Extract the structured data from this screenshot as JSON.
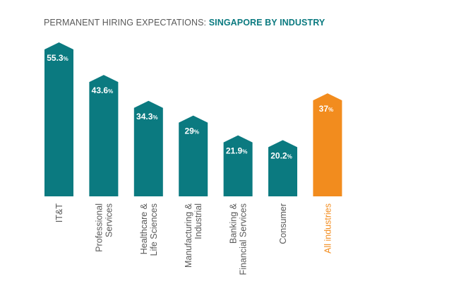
{
  "header": {
    "title_prefix": "PERMANENT HIRING EXPECTATIONS: ",
    "title_highlight": "SINGAPORE BY INDUSTRY"
  },
  "colors": {
    "bar": "#0b7a80",
    "bar_total": "#f28c1e",
    "label_total": "#f28c1e",
    "label": "#5a5a5a"
  },
  "chart_data": {
    "type": "bar",
    "title": "PERMANENT HIRING EXPECTATIONS: SINGAPORE BY INDUSTRY",
    "xlabel": "",
    "ylabel": "",
    "unit": "%",
    "categories": [
      "IT&T",
      "Professional Services",
      "Healthcare & Life Sciences",
      "Manufacturing & Industrial",
      "Banking & Financial Services",
      "Consumer",
      "All industries"
    ],
    "category_lines": [
      [
        "IT&T"
      ],
      [
        "Professional",
        "Services"
      ],
      [
        "Healthcare &",
        "Life Sciences"
      ],
      [
        "Manufacturing &",
        "Industrial"
      ],
      [
        "Banking &",
        "Financial Services"
      ],
      [
        "Consumer"
      ],
      [
        "All industries"
      ]
    ],
    "values": [
      55.3,
      43.6,
      34.3,
      29,
      21.9,
      20.2,
      37
    ],
    "value_labels": [
      "55.3",
      "43.6",
      "34.3",
      "29",
      "21.9",
      "20.2",
      "37"
    ],
    "highlight_index": 6,
    "grid": false,
    "legend": "none"
  }
}
